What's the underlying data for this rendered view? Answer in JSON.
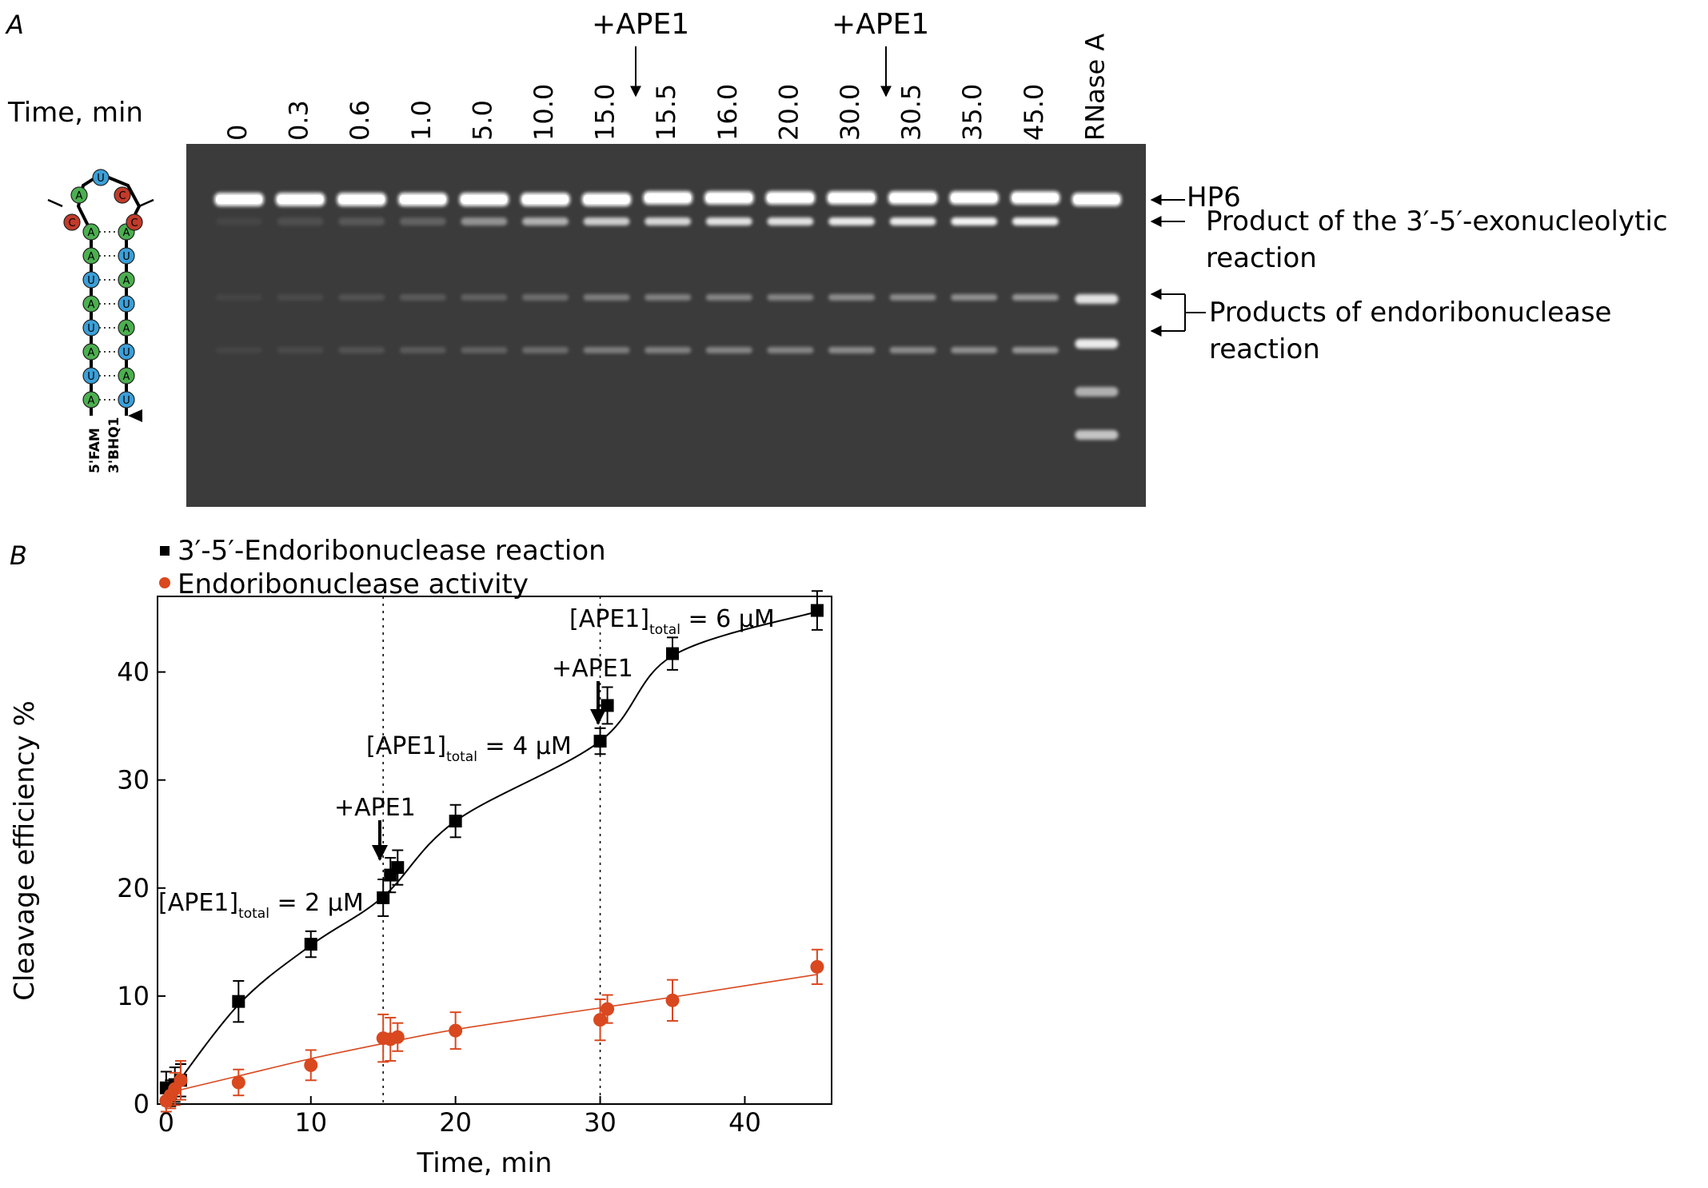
{
  "panelA": {
    "label": "A",
    "time_label": "Time, min",
    "add_label": "+APE1",
    "lanes": [
      "0",
      "0.3",
      "0.6",
      "1.0",
      "5.0",
      "10.0",
      "15.0",
      "15.5",
      "16.0",
      "20.0",
      "30.0",
      "30.5",
      "35.0",
      "45.0",
      "RNase A"
    ],
    "band_hp6": "HP6",
    "band_exo_line1": "Product of the 3′-5′-exonucleolytic",
    "band_exo_line2": "reaction",
    "band_endo_line1": "Products of endoribonuclease",
    "band_endo_line2": "reaction",
    "hairpin": {
      "label_5prime": "5'FAM",
      "label_3prime": "3'BHQ1",
      "left_strand": [
        "A",
        "U",
        "A",
        "U",
        "A",
        "U",
        "A",
        "A",
        "C"
      ],
      "right_strand": [
        "U",
        "A",
        "U",
        "A",
        "U",
        "A",
        "U",
        "A",
        "C"
      ],
      "loop": [
        "A",
        "U",
        "C"
      ],
      "colors": {
        "A": "#4caf50",
        "U": "#3b9fd8",
        "C": "#c23b2a"
      }
    }
  },
  "panelB": {
    "label": "B",
    "legend_exo": "3′-5′-Endoribonuclease reaction",
    "legend_endo": "Endoribonuclease activity",
    "ann_add1": "+APE1",
    "ann_add2": "+APE1",
    "ann_conc": [
      {
        "pre": "[APE1]",
        "sub": "total",
        "post": " = 2 μM"
      },
      {
        "pre": "[APE1]",
        "sub": "total",
        "post": " = 4 μM"
      },
      {
        "pre": "[APE1]",
        "sub": "total",
        "post": " = 6 μM"
      }
    ]
  },
  "chart_data": {
    "type": "scatter",
    "xlabel": "Time, min",
    "ylabel": "Cleavage efficiency %",
    "xlim": [
      0,
      45
    ],
    "ylim": [
      0,
      47
    ],
    "xticks": [
      0,
      10,
      20,
      30,
      40
    ],
    "yticks": [
      0,
      10,
      20,
      30,
      40
    ],
    "vlines": [
      15,
      30
    ],
    "legend_position": "top-left",
    "series": [
      {
        "name": "3′-5′-Endoribonuclease reaction",
        "marker": "square",
        "color": "#000000",
        "x": [
          0,
          0.3,
          0.6,
          1.0,
          5.0,
          10.0,
          15.0,
          15.5,
          16.0,
          20.0,
          30.0,
          30.5,
          35.0,
          45.0
        ],
        "y": [
          1.5,
          1.0,
          1.8,
          2.2,
          9.5,
          14.8,
          19.1,
          21.2,
          21.9,
          26.2,
          33.6,
          36.9,
          41.7,
          45.7
        ],
        "err": [
          1.5,
          1.2,
          1.6,
          1.5,
          1.9,
          1.2,
          1.7,
          1.6,
          1.6,
          1.5,
          1.2,
          1.7,
          1.5,
          1.8
        ]
      },
      {
        "name": "Endoribonuclease activity",
        "marker": "circle",
        "color": "#d9481f",
        "x": [
          0,
          0.3,
          0.6,
          1.0,
          5.0,
          10.0,
          15.0,
          15.5,
          16.0,
          20.0,
          30.0,
          30.5,
          35.0,
          45.0
        ],
        "y": [
          0.3,
          0.8,
          1.4,
          2.2,
          2.0,
          3.6,
          6.1,
          6.0,
          6.2,
          6.8,
          7.8,
          8.8,
          9.6,
          12.7
        ],
        "err": [
          1.0,
          1.2,
          1.5,
          1.8,
          1.2,
          1.4,
          2.2,
          2.0,
          1.3,
          1.7,
          1.9,
          1.3,
          1.9,
          1.6
        ]
      }
    ]
  }
}
